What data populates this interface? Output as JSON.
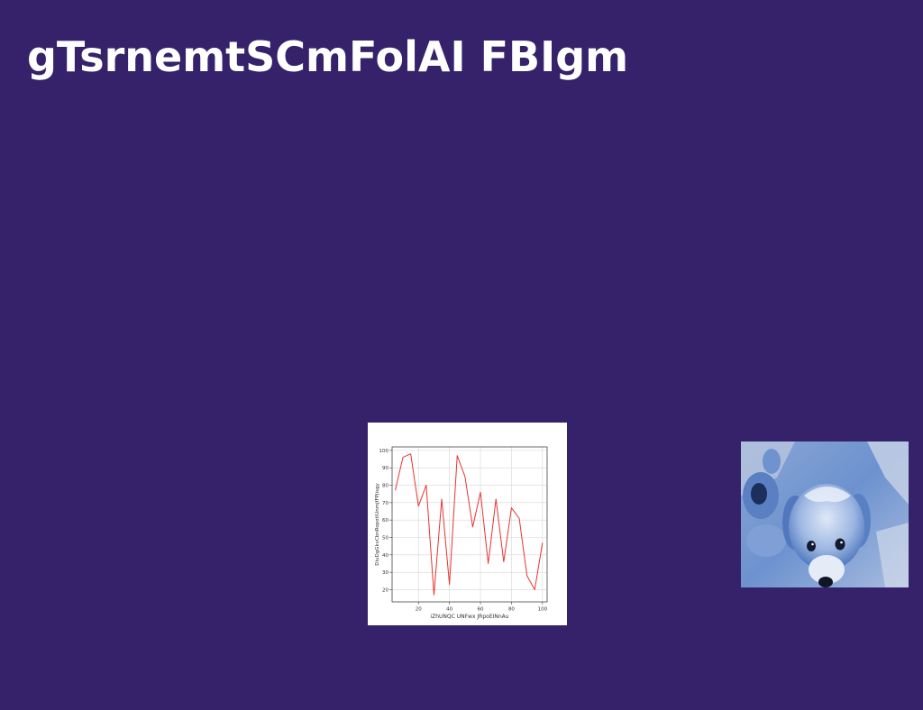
{
  "page": {
    "background": "#35226b",
    "title": "gTsrnemtSCmFolAI FBIgm"
  },
  "chart_data": {
    "type": "line",
    "title": "",
    "xlabel": "iZhUNQC UNFwx JRpoEINnAu",
    "ylabel": "DiuDgGkvCbnRopotlUnmjfFPjisgy",
    "xlim": [
      3,
      103
    ],
    "ylim": [
      13,
      102
    ],
    "xticks": [
      20,
      40,
      60,
      80,
      100
    ],
    "yticks": [
      20,
      30,
      40,
      50,
      60,
      70,
      80,
      90,
      100
    ],
    "grid": true,
    "series": [
      {
        "name": "",
        "color": "#e8342f",
        "x": [
          5,
          10,
          15,
          20,
          25,
          30,
          35,
          40,
          45,
          50,
          55,
          60,
          65,
          70,
          75,
          80,
          85,
          90,
          95,
          100
        ],
        "y": [
          77,
          96,
          98,
          68,
          80,
          17,
          72,
          23,
          97,
          85,
          56,
          76,
          35,
          72,
          36,
          67,
          61,
          28,
          20,
          47
        ]
      }
    ]
  },
  "photo": {
    "subject": "puppy-photo",
    "tint": "#5b86c8"
  }
}
